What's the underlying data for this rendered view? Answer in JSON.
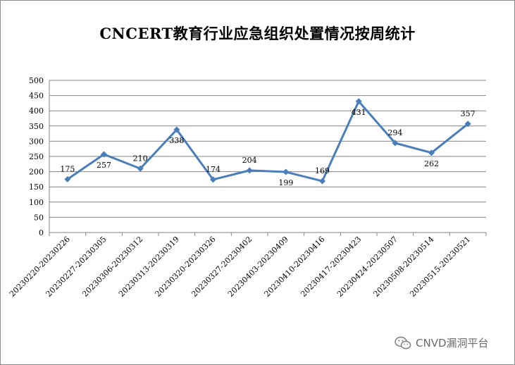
{
  "chart_data": {
    "type": "line",
    "title": "CNCERT教育行业应急组织处置情况按周统计",
    "xlabel": "",
    "ylabel": "",
    "ylim": [
      0,
      500
    ],
    "yticks": [
      0,
      50,
      100,
      150,
      200,
      250,
      300,
      350,
      400,
      450,
      500
    ],
    "grid": true,
    "legend": "none",
    "categories": [
      "20230220-20230226",
      "20230227-20230305",
      "20230306-20230312",
      "20230313-20230319",
      "20230320-20230326",
      "20230327-20230402",
      "20230403-20230409",
      "20230410-20230416",
      "20230417-20230423",
      "20230424-20230507",
      "20230508-20230514",
      "20230515-20230521"
    ],
    "series": [
      {
        "values": [
          175,
          257,
          210,
          338,
          174,
          204,
          199,
          169,
          431,
          294,
          262,
          357
        ],
        "color": "#4a7ebb"
      }
    ]
  },
  "watermark": {
    "text": "CNVD漏洞平台",
    "icon": "wechat-icon"
  }
}
